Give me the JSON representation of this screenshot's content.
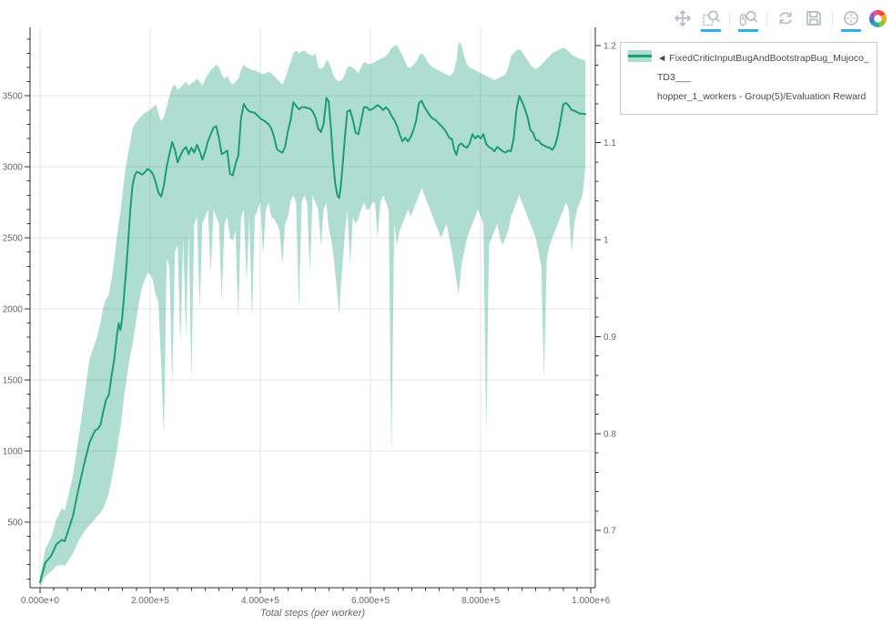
{
  "toolbar": {
    "active_color": "#30b3e2",
    "icon_color": "#b7bdc3",
    "tools": [
      {
        "id": "pan",
        "label": "Pan",
        "active": false
      },
      {
        "id": "box-zoom",
        "label": "Box Zoom",
        "active": true
      },
      {
        "id": "wheel-zoom",
        "label": "Wheel Zoom",
        "active": true
      },
      {
        "id": "reset",
        "label": "Reset",
        "active": false
      },
      {
        "id": "save",
        "label": "Save",
        "active": false
      },
      {
        "id": "hover",
        "label": "Hover",
        "active": true
      }
    ]
  },
  "legend": {
    "line1": "◄ FixedCriticInputBugAndBootstrapBug_Mujoco_TD3___",
    "line2": "hopper_1_workers - Group(5)/Evaluation Reward"
  },
  "chart_data": {
    "type": "line",
    "title": "",
    "xlabel": "Total steps (per worker)",
    "ylabel": "",
    "grid": true,
    "legend_position": "top-right-outside",
    "xlim": [
      -18000,
      1008000
    ],
    "ylim_left": [
      38,
      3982
    ],
    "ylim_right": [
      0.641,
      1.219
    ],
    "x_ticks": {
      "values": [
        0,
        200000,
        400000,
        600000,
        800000,
        1000000
      ],
      "labels": [
        "0.000e+0",
        "2.000e+5",
        "4.000e+5",
        "6.000e+5",
        "8.000e+5",
        "1.000e+6"
      ]
    },
    "x_minor_step": 25000,
    "y_left_ticks": {
      "values": [
        500,
        1000,
        1500,
        2000,
        2500,
        3000,
        3500
      ],
      "labels": [
        "500",
        "1000",
        "1500",
        "2000",
        "2500",
        "3000",
        "3500"
      ]
    },
    "y_left_minor_step": 100,
    "y_right_ticks": {
      "values": [
        0.7,
        0.8,
        0.9,
        1.0,
        1.1,
        1.2
      ],
      "labels": [
        "0.7",
        "0.8",
        "0.9",
        "1",
        "1.1",
        "1.2"
      ]
    },
    "y_right_minor_step": 0.02,
    "series": [
      {
        "name": "FixedCriticInputBugAndBootstrapBug_Mujoco_TD3___hopper_1_workers - Group(5)/Evaluation Reward",
        "color": "#1b9e77",
        "band_color": "rgba(27,158,119,0.35)",
        "x_thousand_steps": [
          0,
          10,
          20,
          30,
          40,
          45,
          50,
          60,
          70,
          80,
          90,
          100,
          105,
          110,
          115,
          120,
          125,
          130,
          135,
          140,
          143,
          146,
          149,
          152,
          156,
          160,
          164,
          168,
          172,
          176,
          180,
          185,
          190,
          195,
          200,
          205,
          210,
          215,
          220,
          225,
          230,
          235,
          240,
          245,
          250,
          255,
          260,
          265,
          270,
          275,
          280,
          285,
          290,
          295,
          300,
          305,
          310,
          315,
          320,
          325,
          330,
          335,
          340,
          345,
          350,
          355,
          360,
          365,
          370,
          375,
          380,
          385,
          390,
          395,
          400,
          405,
          410,
          415,
          420,
          425,
          430,
          435,
          440,
          445,
          450,
          455,
          460,
          465,
          470,
          475,
          480,
          485,
          490,
          495,
          500,
          505,
          510,
          515,
          520,
          524,
          528,
          532,
          536,
          540,
          543,
          546,
          550,
          554,
          558,
          563,
          568,
          573,
          578,
          583,
          588,
          593,
          598,
          603,
          608,
          613,
          618,
          623,
          628,
          633,
          638,
          643,
          648,
          653,
          658,
          663,
          668,
          673,
          678,
          683,
          688,
          693,
          698,
          703,
          708,
          713,
          718,
          723,
          728,
          733,
          738,
          743,
          748,
          752,
          756,
          760,
          765,
          770,
          775,
          780,
          785,
          790,
          795,
          800,
          805,
          810,
          815,
          820,
          825,
          830,
          835,
          840,
          845,
          850,
          855,
          860,
          865,
          870,
          875,
          880,
          885,
          890,
          895,
          900,
          905,
          910,
          915,
          920,
          925,
          930,
          935,
          940,
          945,
          950,
          955,
          960,
          965,
          970,
          975,
          980,
          985,
          990
        ],
        "mean": [
          75,
          215,
          260,
          345,
          375,
          365,
          425,
          545,
          735,
          905,
          1060,
          1145,
          1155,
          1185,
          1280,
          1360,
          1395,
          1530,
          1650,
          1820,
          1900,
          1850,
          1930,
          2060,
          2250,
          2460,
          2700,
          2870,
          2940,
          2965,
          2960,
          2945,
          2960,
          2985,
          2975,
          2950,
          2895,
          2820,
          2790,
          2870,
          3000,
          3090,
          3175,
          3120,
          3030,
          3080,
          3120,
          3140,
          3090,
          3135,
          3100,
          3155,
          3110,
          3050,
          3110,
          3180,
          3230,
          3275,
          3285,
          3200,
          3090,
          3100,
          3115,
          2950,
          2940,
          3020,
          3080,
          3340,
          3443,
          3410,
          3390,
          3385,
          3380,
          3360,
          3340,
          3330,
          3315,
          3300,
          3270,
          3210,
          3125,
          3110,
          3100,
          3140,
          3250,
          3330,
          3455,
          3430,
          3405,
          3420,
          3420,
          3415,
          3410,
          3390,
          3350,
          3270,
          3245,
          3305,
          3485,
          3460,
          3280,
          3050,
          2880,
          2800,
          2780,
          2860,
          3040,
          3230,
          3390,
          3400,
          3330,
          3240,
          3230,
          3320,
          3420,
          3420,
          3400,
          3405,
          3420,
          3435,
          3420,
          3400,
          3420,
          3400,
          3360,
          3330,
          3290,
          3230,
          3180,
          3205,
          3180,
          3210,
          3260,
          3330,
          3450,
          3465,
          3420,
          3390,
          3360,
          3340,
          3330,
          3310,
          3290,
          3270,
          3240,
          3205,
          3195,
          3120,
          3085,
          3150,
          3165,
          3145,
          3135,
          3165,
          3230,
          3200,
          3220,
          3200,
          3230,
          3160,
          3140,
          3130,
          3110,
          3140,
          3125,
          3110,
          3100,
          3115,
          3110,
          3200,
          3400,
          3500,
          3460,
          3410,
          3350,
          3260,
          3240,
          3190,
          3185,
          3160,
          3150,
          3140,
          3135,
          3120,
          3150,
          3220,
          3330,
          3440,
          3450,
          3430,
          3400,
          3395,
          3385,
          3375,
          3375,
          3370
        ],
        "lower": [
          40,
          120,
          150,
          190,
          200,
          190,
          220,
          280,
          370,
          430,
          480,
          520,
          545,
          565,
          600,
          645,
          705,
          800,
          905,
          1010,
          1100,
          1160,
          1260,
          1360,
          1470,
          1580,
          1680,
          1750,
          1850,
          1950,
          2050,
          2150,
          2200,
          2250,
          2250,
          2200,
          2100,
          2050,
          1600,
          1100,
          2350,
          2300,
          1450,
          2400,
          2450,
          1750,
          2500,
          1800,
          2550,
          1500,
          2600,
          2650,
          2000,
          2600,
          2650,
          2700,
          2250,
          2700,
          2650,
          2600,
          2060,
          2600,
          2650,
          2500,
          2480,
          2550,
          1930,
          2650,
          2700,
          2190,
          2650,
          1930,
          2650,
          2700,
          2750,
          2380,
          2700,
          2750,
          2650,
          2634,
          2600,
          2550,
          2314,
          2600,
          2650,
          2763,
          2800,
          2750,
          2000,
          2750,
          2800,
          2750,
          2250,
          2800,
          2750,
          2700,
          2442,
          2700,
          2750,
          2570,
          2500,
          2400,
          2250,
          2100,
          1960,
          2150,
          2350,
          2550,
          2700,
          2314,
          2650,
          2600,
          2634,
          2700,
          2750,
          2700,
          2700,
          2750,
          2750,
          2500,
          2750,
          2800,
          2750,
          2700,
          950,
          2600,
          2450,
          2550,
          2600,
          2650,
          2700,
          2650,
          2700,
          2750,
          2800,
          2850,
          2800,
          2750,
          2700,
          2650,
          2600,
          2550,
          2500,
          2550,
          2600,
          2500,
          2400,
          2300,
          2200,
          2100,
          2300,
          2400,
          2500,
          2550,
          2600,
          2650,
          2700,
          2650,
          2600,
          1100,
          2450,
          2500,
          2550,
          2600,
          2500,
          2450,
          2500,
          2550,
          2650,
          2700,
          2750,
          2800,
          2750,
          2700,
          2650,
          2600,
          2550,
          2500,
          2400,
          2300,
          1500,
          2350,
          2450,
          2500,
          2550,
          2600,
          2650,
          2700,
          2750,
          2700,
          2400,
          2600,
          2700,
          2750,
          2800,
          3000
        ],
        "upper": [
          115,
          310,
          390,
          520,
          600,
          580,
          660,
          830,
          1090,
          1360,
          1650,
          1760,
          1820,
          1910,
          2010,
          2070,
          2100,
          2210,
          2350,
          2520,
          2600,
          2680,
          2780,
          2890,
          3000,
          3090,
          3180,
          3270,
          3300,
          3320,
          3340,
          3360,
          3380,
          3390,
          3400,
          3420,
          3440,
          3380,
          3320,
          3350,
          3420,
          3500,
          3560,
          3580,
          3540,
          3560,
          3580,
          3600,
          3570,
          3590,
          3600,
          3620,
          3600,
          3570,
          3620,
          3650,
          3680,
          3700,
          3720,
          3700,
          3650,
          3620,
          3640,
          3600,
          3580,
          3600,
          3620,
          3680,
          3720,
          3700,
          3690,
          3680,
          3680,
          3670,
          3660,
          3650,
          3660,
          3670,
          3660,
          3640,
          3620,
          3600,
          3580,
          3620,
          3680,
          3740,
          3800,
          3820,
          3800,
          3810,
          3820,
          3800,
          3790,
          3780,
          3800,
          3700,
          3690,
          3700,
          3750,
          3740,
          3700,
          3650,
          3620,
          3610,
          3600,
          3610,
          3620,
          3660,
          3700,
          3710,
          3700,
          3680,
          3660,
          3700,
          3740,
          3730,
          3720,
          3730,
          3740,
          3750,
          3760,
          3770,
          3780,
          3800,
          3840,
          3850,
          3860,
          3820,
          3780,
          3740,
          3700,
          3700,
          3720,
          3740,
          3780,
          3800,
          3780,
          3740,
          3720,
          3700,
          3690,
          3680,
          3670,
          3660,
          3650,
          3640,
          3650,
          3680,
          3750,
          3880,
          3860,
          3780,
          3720,
          3700,
          3690,
          3680,
          3670,
          3660,
          3650,
          3640,
          3630,
          3620,
          3610,
          3620,
          3630,
          3640,
          3650,
          3700,
          3780,
          3800,
          3820,
          3830,
          3810,
          3780,
          3750,
          3720,
          3700,
          3690,
          3700,
          3720,
          3740,
          3760,
          3780,
          3800,
          3810,
          3820,
          3830,
          3840,
          3830,
          3810,
          3790,
          3780,
          3770,
          3760,
          3755,
          3750
        ]
      }
    ],
    "style": {
      "grid_color": "#e5e5e5",
      "axis_color": "#303030",
      "tick_label_color": "#666666",
      "axis_title_color": "#666666",
      "background": "#ffffff"
    }
  }
}
